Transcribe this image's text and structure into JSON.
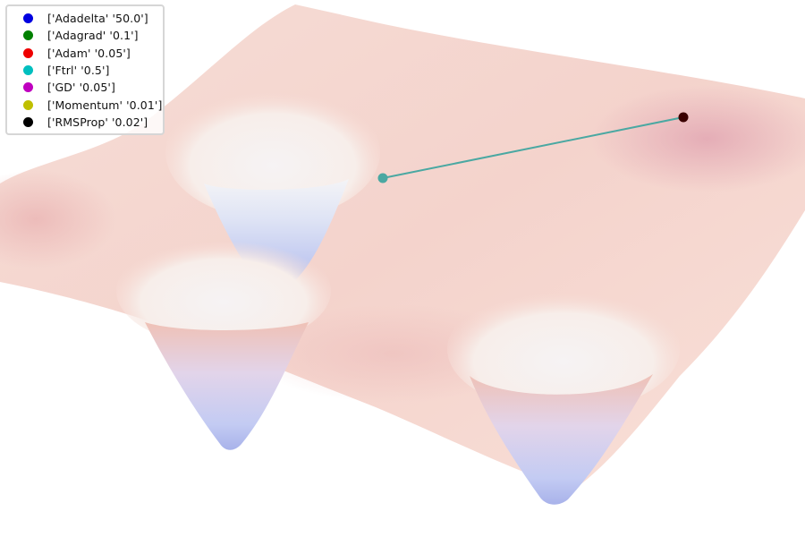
{
  "chart_data": {
    "type": "surface3d",
    "title": "",
    "legend": {
      "placement": "top-left",
      "entries": [
        {
          "label": "['Adadelta' '50.0']",
          "color": "#0000e0"
        },
        {
          "label": "['Adagrad' '0.1']",
          "color": "#008000"
        },
        {
          "label": "['Adam' '0.05']",
          "color": "#ee0000"
        },
        {
          "label": "['Ftrl' '0.5']",
          "color": "#00bfbf"
        },
        {
          "label": "['GD' '0.05']",
          "color": "#bf00bf"
        },
        {
          "label": "['Momentum' '0.01']",
          "color": "#bfbf00"
        },
        {
          "label": "['RMSProp' '0.02']",
          "color": "#000000"
        }
      ]
    },
    "surface": {
      "colormap": "coolwarm",
      "minima_count": 3,
      "surface_colors": {
        "high": "#e6a8ae",
        "mid": "#f7d9d0",
        "rim": "#f3f3f3",
        "low": "#a6b1e6"
      }
    },
    "trajectories": [
      {
        "name": "['Ftrl' '0.5']",
        "color": "#4aa8a2",
        "points": "start on plateau → moves toward central basin"
      }
    ]
  }
}
